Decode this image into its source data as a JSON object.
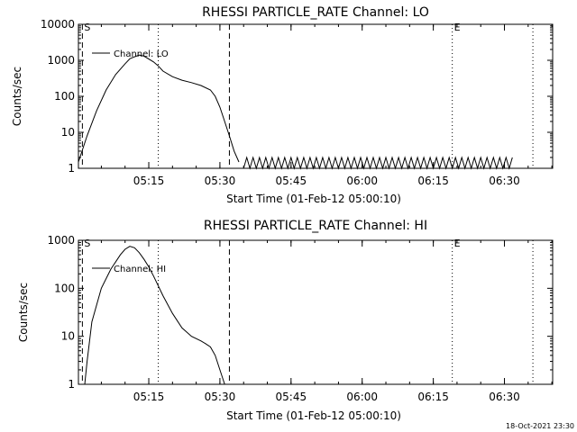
{
  "footer": {
    "timestamp": "18-Oct-2021 23:30"
  },
  "chart_data": [
    {
      "type": "line",
      "title": "RHESSI PARTICLE_RATE Channel: LO",
      "xlabel": "Start Time (01-Feb-12 05:00:10)",
      "ylabel": "Counts/sec",
      "y_scale": "log",
      "ylim": [
        1,
        10000
      ],
      "y_ticks": [
        1,
        10,
        100,
        1000,
        10000
      ],
      "y_tick_labels": [
        "1",
        "10",
        "100",
        "1000",
        "10000"
      ],
      "xlim": [
        "05:00:10",
        "06:40:10"
      ],
      "x_ticks": [
        "05:15",
        "05:30",
        "05:45",
        "06:00",
        "06:15",
        "06:30"
      ],
      "legend": {
        "label": "Channel: LO",
        "placement": "top-left"
      },
      "markers": [
        {
          "label": "S",
          "time": "05:01",
          "style": "dashed"
        },
        {
          "label": "",
          "time": "05:17",
          "style": "dotted"
        },
        {
          "label": "",
          "time": "05:32",
          "style": "dashed"
        },
        {
          "label": "E",
          "time": "06:19",
          "style": "dotted"
        },
        {
          "label": "",
          "time": "06:36",
          "style": "dotted"
        }
      ],
      "series": [
        {
          "x": [
            "05:00:10",
            "05:02",
            "05:04",
            "05:06",
            "05:08",
            "05:10",
            "05:11",
            "05:12",
            "05:13",
            "05:14",
            "05:16",
            "05:17",
            "05:18",
            "05:20",
            "05:22",
            "05:24",
            "05:26",
            "05:28",
            "05:29",
            "05:30",
            "05:31",
            "05:32",
            "05:33",
            "05:34"
          ],
          "values": [
            1.5,
            8,
            40,
            150,
            400,
            800,
            1100,
            1250,
            1400,
            1300,
            900,
            700,
            500,
            350,
            280,
            240,
            200,
            150,
            100,
            50,
            20,
            8,
            3,
            1.5
          ]
        }
      ],
      "noise": {
        "from": "05:35",
        "to": "06:32",
        "low": 1,
        "high": 2
      }
    },
    {
      "type": "line",
      "title": "RHESSI PARTICLE_RATE Channel: HI",
      "xlabel": "Start Time (01-Feb-12 05:00:10)",
      "ylabel": "Counts/sec",
      "y_scale": "log",
      "ylim": [
        1,
        1000
      ],
      "y_ticks": [
        1,
        10,
        100,
        1000
      ],
      "y_tick_labels": [
        "1",
        "10",
        "100",
        "1000"
      ],
      "xlim": [
        "05:00:10",
        "06:40:10"
      ],
      "x_ticks": [
        "05:15",
        "05:30",
        "05:45",
        "06:00",
        "06:15",
        "06:30"
      ],
      "legend": {
        "label": "Channel: HI",
        "placement": "top-left"
      },
      "markers": [
        {
          "label": "S",
          "time": "05:01",
          "style": "dashed"
        },
        {
          "label": "",
          "time": "05:17",
          "style": "dotted"
        },
        {
          "label": "",
          "time": "05:32",
          "style": "dashed"
        },
        {
          "label": "E",
          "time": "06:19",
          "style": "dotted"
        },
        {
          "label": "",
          "time": "06:36",
          "style": "dotted"
        }
      ],
      "series": [
        {
          "x": [
            "05:01:30",
            "05:02",
            "05:03",
            "05:05",
            "05:07",
            "05:09",
            "05:10",
            "05:11",
            "05:12",
            "05:13",
            "05:14",
            "05:15",
            "05:16",
            "05:18",
            "05:20",
            "05:22",
            "05:24",
            "05:26",
            "05:27",
            "05:28",
            "05:29",
            "05:30",
            "05:31"
          ],
          "values": [
            1,
            3,
            20,
            100,
            250,
            500,
            650,
            750,
            700,
            550,
            400,
            280,
            180,
            70,
            30,
            15,
            10,
            8,
            7,
            6,
            4,
            2,
            1
          ]
        }
      ]
    }
  ]
}
